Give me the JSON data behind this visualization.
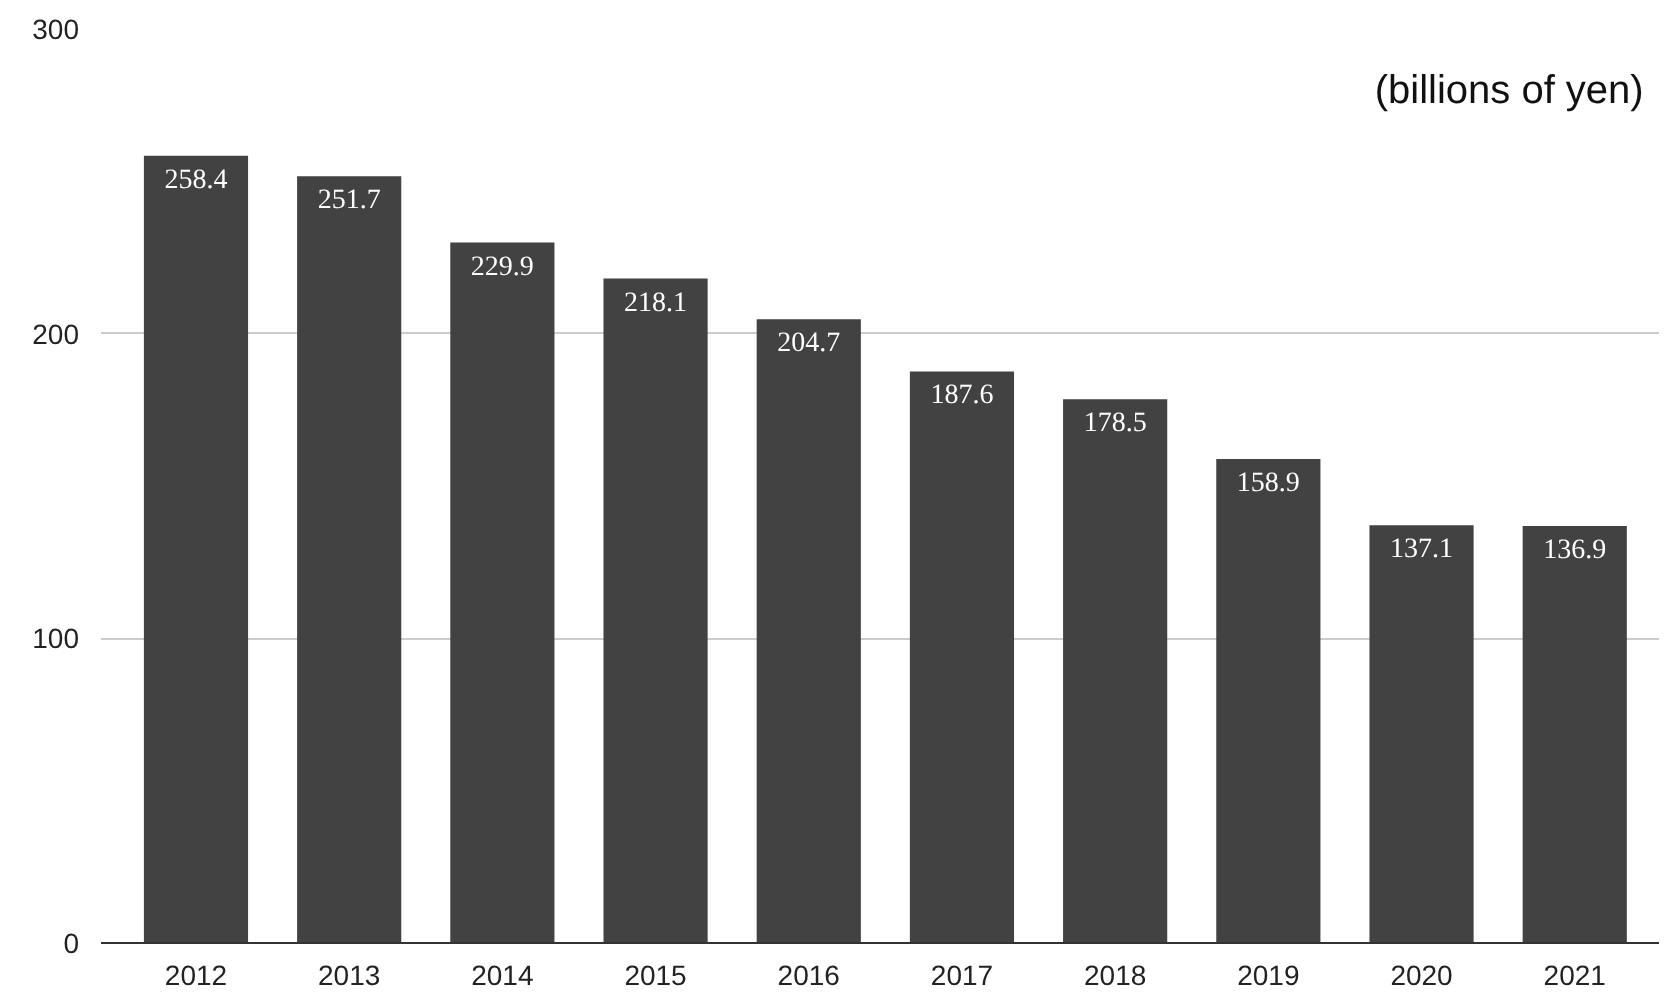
{
  "chart_data": {
    "type": "bar",
    "categories": [
      "2012",
      "2013",
      "2014",
      "2015",
      "2016",
      "2017",
      "2018",
      "2019",
      "2020",
      "2021"
    ],
    "values": [
      258.4,
      251.7,
      229.9,
      218.1,
      204.7,
      187.6,
      178.5,
      158.9,
      137.1,
      136.9
    ],
    "color": "#424242",
    "ylim": [
      0,
      300
    ],
    "yticks": [
      0,
      100,
      200,
      300
    ],
    "grid": "y",
    "data_labels": true,
    "annotations": [
      "(billions of yen)"
    ]
  }
}
